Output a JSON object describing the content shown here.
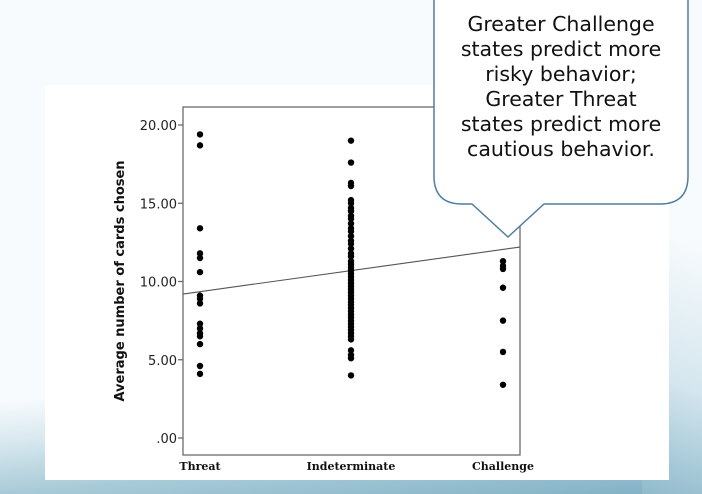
{
  "chart_data": {
    "type": "scatter",
    "title": "",
    "xlabel": "",
    "ylabel": "Average number of cards chosen",
    "categories": [
      "Threat",
      "Indeterminate",
      "Challenge"
    ],
    "y_ticks": [
      ".00",
      "5.00",
      "10.00",
      "15.00",
      "20.00"
    ],
    "ylim": [
      -1.1,
      21.2
    ],
    "grid": false,
    "legend": null,
    "series": [
      {
        "name": "Threat",
        "x": "Threat",
        "values": [
          19.4,
          18.7,
          13.4,
          11.8,
          11.5,
          10.6,
          9.1,
          8.9,
          8.6,
          7.3,
          7.0,
          6.7,
          6.5,
          6.0,
          4.6,
          4.1
        ]
      },
      {
        "name": "Indeterminate",
        "x": "Indeterminate",
        "values": [
          19.0,
          17.6,
          16.3,
          16.1,
          15.2,
          15.0,
          14.7,
          14.5,
          14.2,
          14.0,
          13.7,
          13.4,
          13.2,
          12.9,
          12.6,
          12.4,
          12.1,
          11.8,
          11.6,
          11.3,
          11.1,
          10.9,
          10.7,
          10.5,
          10.3,
          10.1,
          9.9,
          9.7,
          9.5,
          9.3,
          9.1,
          8.9,
          8.7,
          8.5,
          8.3,
          8.1,
          7.9,
          7.7,
          7.5,
          7.3,
          7.1,
          6.9,
          6.7,
          6.5,
          6.3,
          5.6,
          5.3,
          5.1,
          4.0
        ]
      },
      {
        "name": "Challenge",
        "x": "Challenge",
        "values": [
          11.3,
          11.0,
          10.8,
          9.6,
          7.5,
          5.5,
          3.4
        ]
      }
    ],
    "fit_line": {
      "type": "linear",
      "start": {
        "x": "left-edge",
        "y": 9.2
      },
      "end": {
        "x": "right-edge",
        "y": 12.2
      }
    },
    "annotation": "Greater Challenge states predict more risky behavior; Greater Threat states predict more cautious behavior."
  },
  "callout": {
    "lines": [
      "Greater Challenge",
      "states predict more",
      "risky behavior;",
      "Greater Threat",
      "states predict more",
      "cautious behavior."
    ],
    "border_color": "#4f7f9f",
    "fill_color": "#ffffff"
  },
  "colors": {
    "marker": "#000000",
    "axis": "#6b6b6b",
    "fit_line": "#555555"
  }
}
